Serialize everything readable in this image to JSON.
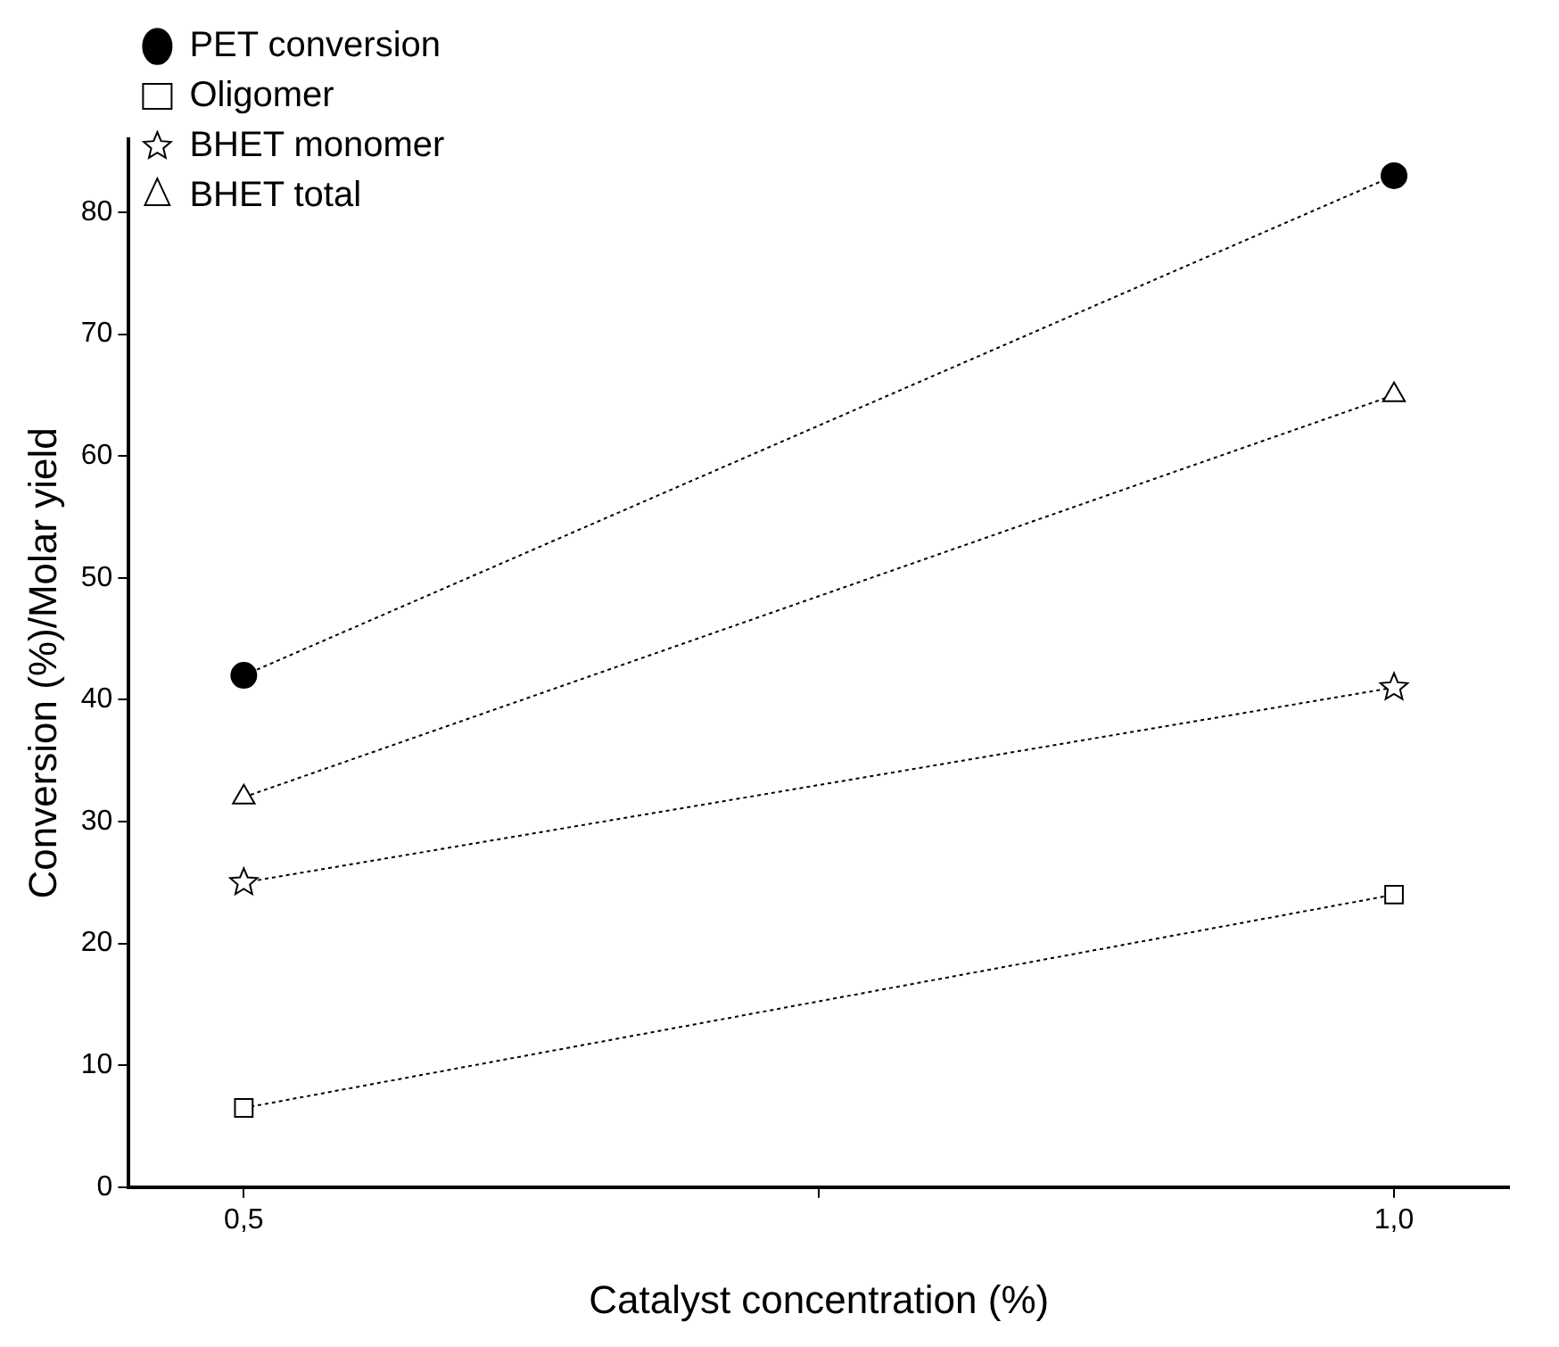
{
  "chart_data": {
    "type": "line",
    "xlabel": "Catalyst concentration (%)",
    "ylabel": "Conversion (%)/Molar yield",
    "x": [
      0.5,
      1.0
    ],
    "series": [
      {
        "name": "PET conversion",
        "color": "#000000",
        "marker": "circle",
        "values": [
          42,
          83
        ]
      },
      {
        "name": "Oligomer",
        "color": "#000000",
        "marker": "square",
        "values": [
          6.5,
          24
        ]
      },
      {
        "name": "BHET monomer",
        "color": "#000000",
        "marker": "star",
        "values": [
          25,
          41
        ]
      },
      {
        "name": "BHET total",
        "color": "#000000",
        "marker": "triangle",
        "values": [
          32,
          65
        ]
      }
    ],
    "xlim": [
      0.45,
      1.05
    ],
    "xticks": [
      {
        "value": 0.5,
        "label": "0,5"
      },
      {
        "value": 0.75,
        "label": null
      },
      {
        "value": 1.0,
        "label": "1,0"
      }
    ],
    "ylim": [
      0,
      86
    ],
    "yticks": [
      0,
      10,
      20,
      30,
      40,
      50,
      60,
      70,
      80
    ],
    "grid": false,
    "legend": "top left",
    "line_style": "dotted"
  }
}
